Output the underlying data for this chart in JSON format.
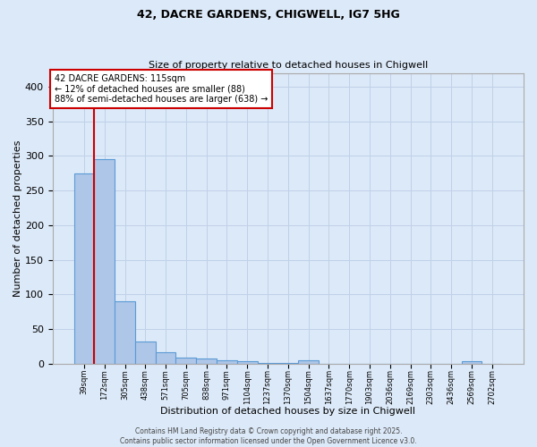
{
  "title1": "42, DACRE GARDENS, CHIGWELL, IG7 5HG",
  "title2": "Size of property relative to detached houses in Chigwell",
  "xlabel": "Distribution of detached houses by size in Chigwell",
  "ylabel": "Number of detached properties",
  "bar_labels": [
    "39sqm",
    "172sqm",
    "305sqm",
    "438sqm",
    "571sqm",
    "705sqm",
    "838sqm",
    "971sqm",
    "1104sqm",
    "1237sqm",
    "1370sqm",
    "1504sqm",
    "1637sqm",
    "1770sqm",
    "1903sqm",
    "2036sqm",
    "2169sqm",
    "2303sqm",
    "2436sqm",
    "2569sqm",
    "2702sqm"
  ],
  "bar_values": [
    275,
    295,
    90,
    32,
    17,
    9,
    7,
    5,
    3,
    1,
    1,
    5,
    0,
    0,
    0,
    0,
    0,
    0,
    0,
    3,
    0
  ],
  "bar_color": "#aec6e8",
  "bar_edge_color": "#5b9bd5",
  "vline_color": "#cc0000",
  "vline_x": 0.5,
  "annotation_text": "42 DACRE GARDENS: 115sqm\n← 12% of detached houses are smaller (88)\n88% of semi-detached houses are larger (638) →",
  "annotation_box_color": "#ffffff",
  "annotation_box_edge": "#cc0000",
  "ylim": [
    0,
    420
  ],
  "yticks": [
    0,
    50,
    100,
    150,
    200,
    250,
    300,
    350,
    400
  ],
  "bg_color": "#dce9f8",
  "grid_color": "#c0d0e8",
  "footer": "Contains HM Land Registry data © Crown copyright and database right 2025.\nContains public sector information licensed under the Open Government Licence v3.0."
}
